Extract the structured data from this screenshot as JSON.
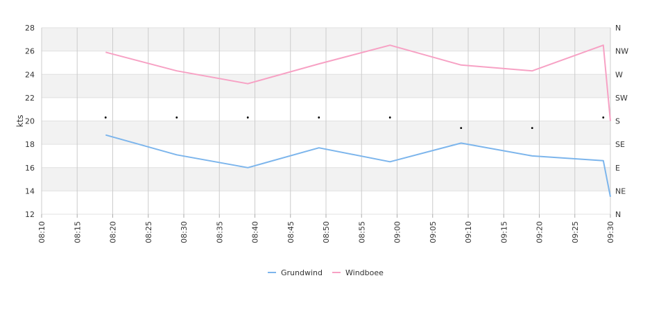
{
  "chart_data": {
    "type": "line",
    "xlabel": "",
    "ylabel": "kts",
    "ylim": [
      12,
      28
    ],
    "y_ticks": [
      12,
      14,
      16,
      18,
      20,
      22,
      24,
      26,
      28
    ],
    "y2_ticks": [
      "N",
      "NE",
      "E",
      "SE",
      "S",
      "SW",
      "W",
      "NW",
      "N"
    ],
    "x_ticks": [
      "08:10",
      "08:15",
      "08:20",
      "08:25",
      "08:30",
      "08:35",
      "08:40",
      "08:45",
      "08:50",
      "08:55",
      "09:00",
      "09:05",
      "09:10",
      "09:15",
      "09:20",
      "09:25",
      "09:30"
    ],
    "xlim": [
      "08:10",
      "09:30"
    ],
    "grid": true,
    "alternating_bands": true,
    "legend_position": "bottom-center",
    "series": [
      {
        "name": "Grundwind",
        "color": "#7cb5ec",
        "x": [
          "08:19",
          "08:29",
          "08:39",
          "08:49",
          "08:59",
          "09:09",
          "09:19",
          "09:29",
          "09:30"
        ],
        "values": [
          18.8,
          17.1,
          16.0,
          17.7,
          16.5,
          18.1,
          17.0,
          16.6,
          13.5
        ]
      },
      {
        "name": "Windboee",
        "color": "#f7a1c4",
        "x": [
          "08:19",
          "08:29",
          "08:39",
          "08:49",
          "08:59",
          "09:09",
          "09:19",
          "09:29",
          "09:30"
        ],
        "values": [
          25.9,
          24.3,
          23.2,
          24.9,
          26.5,
          24.8,
          24.3,
          26.5,
          20.0
        ]
      }
    ],
    "direction_markers": {
      "x": [
        "08:19",
        "08:29",
        "08:39",
        "08:49",
        "08:59",
        "09:09",
        "09:19",
        "09:29"
      ],
      "values": [
        20.3,
        20.3,
        20.3,
        20.3,
        20.3,
        19.4,
        19.4,
        20.3
      ]
    }
  }
}
